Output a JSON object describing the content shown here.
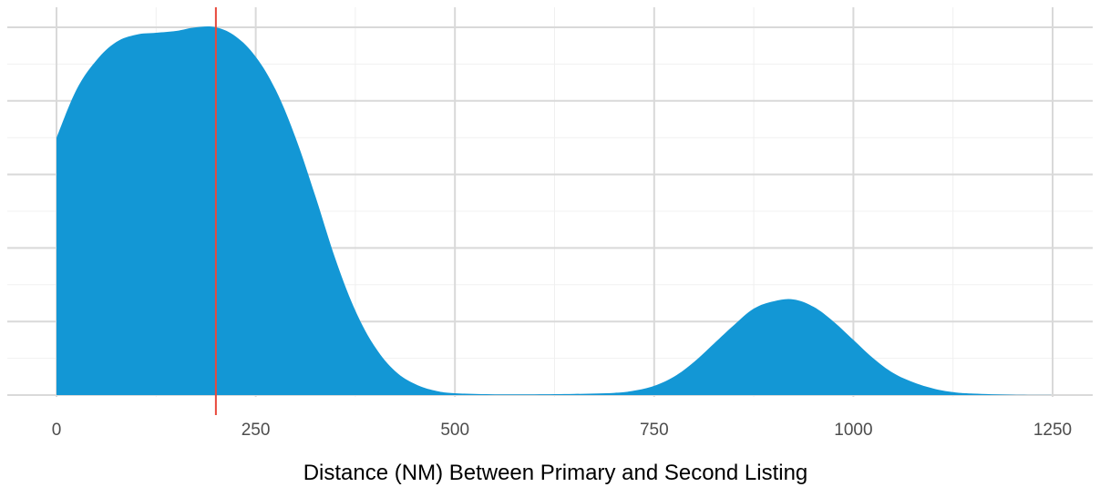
{
  "chart_data": {
    "type": "area",
    "title": "",
    "xlabel": "Distance (NM) Between Primary and Second Listing",
    "ylabel": "",
    "xlim": [
      0,
      1250
    ],
    "ylim": [
      0,
      1
    ],
    "x_ticks": [
      0,
      250,
      500,
      750,
      1000,
      1250
    ],
    "x_tick_labels": [
      "0",
      "250",
      "500",
      "750",
      "1000",
      "1250"
    ],
    "y_tick_labels_visible": false,
    "grid": true,
    "legend": "none",
    "series": [
      {
        "x": [
          0,
          25,
          50,
          75,
          100,
          125,
          150,
          175,
          200,
          225,
          250,
          275,
          300,
          325,
          350,
          375,
          400,
          425,
          450,
          475,
          500,
          550,
          600,
          650,
          700,
          725,
          750,
          775,
          800,
          825,
          850,
          875,
          900,
          925,
          950,
          975,
          1000,
          1025,
          1050,
          1075,
          1100,
          1125,
          1150,
          1200,
          1250
        ],
        "y": [
          0.7,
          0.83,
          0.91,
          0.96,
          0.98,
          0.985,
          0.99,
          1.0,
          1.0,
          0.975,
          0.92,
          0.83,
          0.7,
          0.54,
          0.37,
          0.23,
          0.13,
          0.065,
          0.03,
          0.012,
          0.005,
          0.002,
          0.002,
          0.003,
          0.006,
          0.012,
          0.025,
          0.05,
          0.09,
          0.14,
          0.19,
          0.235,
          0.255,
          0.26,
          0.24,
          0.2,
          0.15,
          0.1,
          0.06,
          0.035,
          0.018,
          0.008,
          0.004,
          0.001,
          0.0
        ]
      }
    ],
    "reference_line": {
      "x": 200
    },
    "colors": {
      "fill": "#1397d5",
      "reference_line": "#e8483b",
      "grid_major": "#d9d9d9",
      "grid_minor": "#f0f0f0",
      "tick_text": "#4d4d4d",
      "axis_title": "#000000"
    }
  }
}
